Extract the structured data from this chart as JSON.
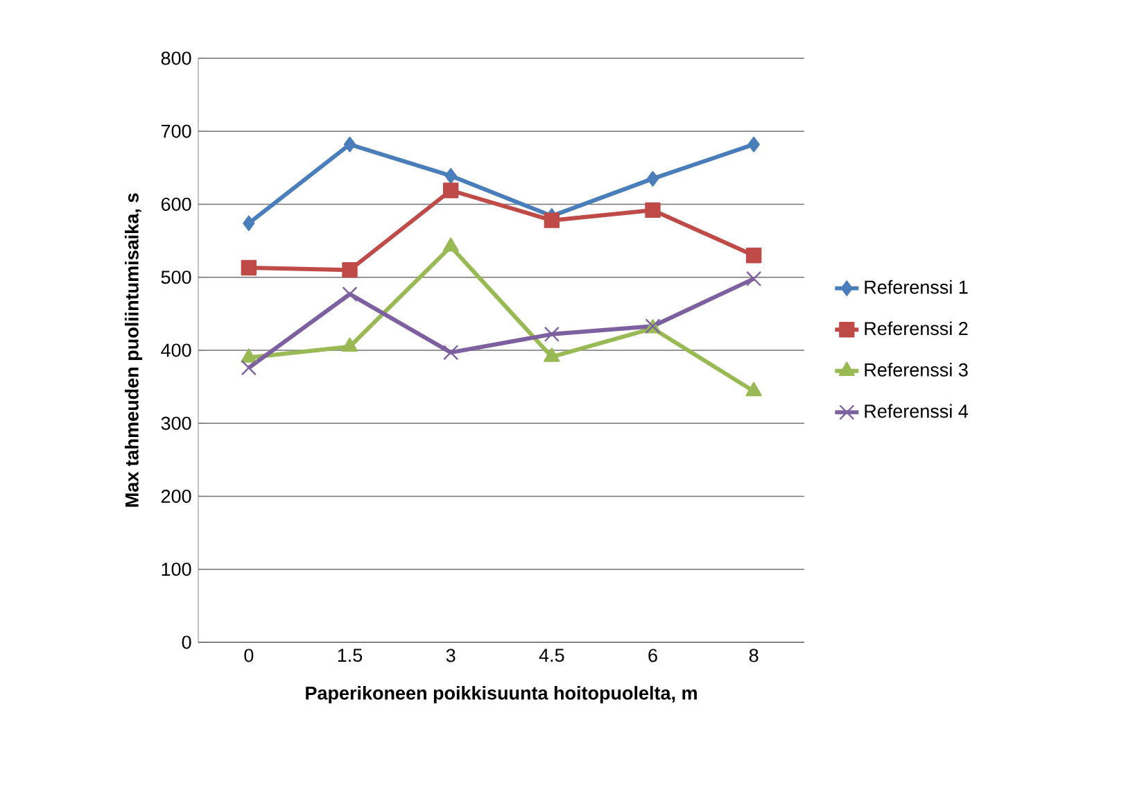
{
  "chart_data": {
    "type": "line",
    "xlabel": "Paperikoneen poikkisuunta hoitopuolelta, m",
    "ylabel": "Max tahmeuden puoliintumisaika, s",
    "categories": [
      "0",
      "1.5",
      "3",
      "4.5",
      "6",
      "8"
    ],
    "series": [
      {
        "name": "Referenssi 1",
        "color": "#4a7ebb",
        "marker": "diamond",
        "values": [
          574,
          682,
          639,
          584,
          635,
          682
        ]
      },
      {
        "name": "Referenssi 2",
        "color": "#be4b48",
        "marker": "square",
        "values": [
          513,
          510,
          619,
          578,
          592,
          530
        ]
      },
      {
        "name": "Referenssi 3",
        "color": "#98b954",
        "marker": "triangle",
        "values": [
          390,
          405,
          542,
          391,
          430,
          344
        ]
      },
      {
        "name": "Referenssi 4",
        "color": "#7d60a0",
        "marker": "cross",
        "values": [
          376,
          477,
          397,
          422,
          433,
          498
        ]
      }
    ],
    "ylim": [
      0,
      800
    ],
    "yticks": [
      0,
      100,
      200,
      300,
      400,
      500,
      600,
      700,
      800
    ],
    "grid": "y",
    "legend": "right",
    "line_style": "solid"
  }
}
